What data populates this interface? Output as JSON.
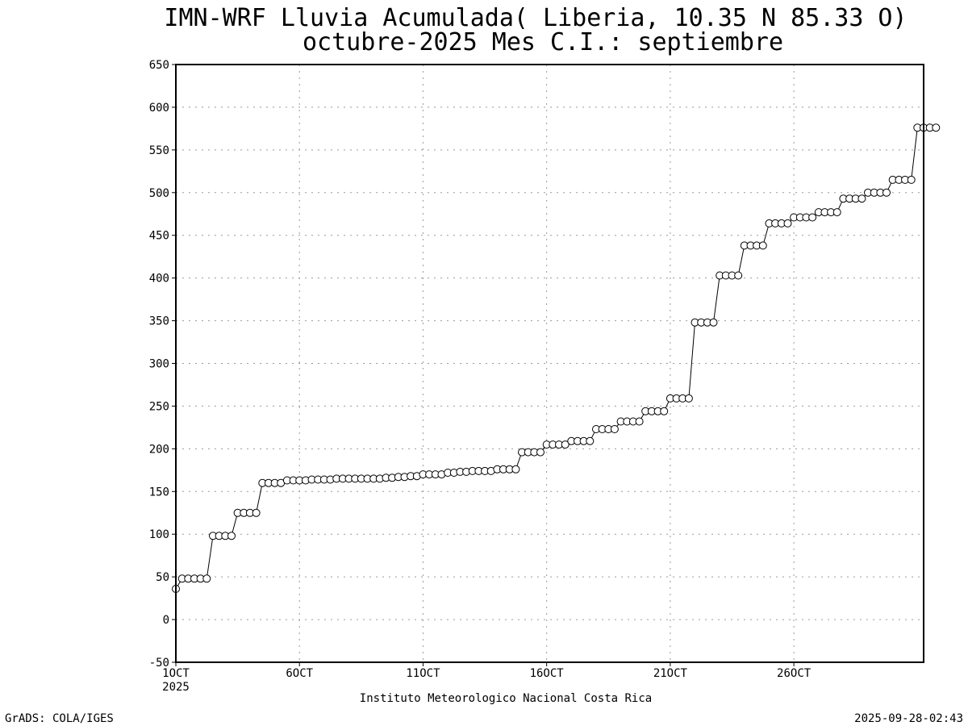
{
  "chart_data": {
    "type": "line",
    "title": "IMN-WRF  Lluvia Acumulada( Liberia, 10.35  N 85.33  O)",
    "subtitle": "octubre-2025 Mes C.I.: septiembre",
    "xlabel": "Instituto Meteorologico Nacional Costa Rica",
    "ylabel": "",
    "ylim": [
      -50,
      650
    ],
    "yticks": [
      -50,
      0,
      50,
      100,
      150,
      200,
      250,
      300,
      350,
      400,
      450,
      500,
      550,
      600,
      650
    ],
    "xlim": [
      1,
      31.25
    ],
    "xticks": [
      {
        "day": 1,
        "label": "1OCT",
        "sublabel": "2025"
      },
      {
        "day": 6,
        "label": "6OCT",
        "sublabel": ""
      },
      {
        "day": 11,
        "label": "11OCT",
        "sublabel": ""
      },
      {
        "day": 16,
        "label": "16OCT",
        "sublabel": ""
      },
      {
        "day": 21,
        "label": "21OCT",
        "sublabel": ""
      },
      {
        "day": 26,
        "label": "26OCT",
        "sublabel": ""
      }
    ],
    "grid": true,
    "marker": "open-circle",
    "series": [
      {
        "time_step_days": 0.25,
        "x_start_day": 1,
        "values": [
          36,
          48,
          48,
          48,
          48,
          48,
          98,
          98,
          98,
          98,
          125,
          125,
          125,
          125,
          160,
          160,
          160,
          160,
          163,
          163,
          163,
          163,
          164,
          164,
          164,
          164,
          165,
          165,
          165,
          165,
          165,
          165,
          165,
          165,
          166,
          166,
          167,
          167,
          168,
          168,
          170,
          170,
          170,
          170,
          172,
          172,
          173,
          173,
          174,
          174,
          174,
          174,
          176,
          176,
          176,
          176,
          196,
          196,
          196,
          196,
          205,
          205,
          205,
          205,
          209,
          209,
          209,
          209,
          223,
          223,
          223,
          223,
          232,
          232,
          232,
          232,
          244,
          244,
          244,
          244,
          259,
          259,
          259,
          259,
          348,
          348,
          348,
          348,
          403,
          403,
          403,
          403,
          438,
          438,
          438,
          438,
          464,
          464,
          464,
          464,
          471,
          471,
          471,
          471,
          477,
          477,
          477,
          477,
          493,
          493,
          493,
          493,
          500,
          500,
          500,
          500,
          515,
          515,
          515,
          515,
          576,
          576,
          576,
          576
        ]
      }
    ]
  },
  "footer": {
    "left": "GrADS: COLA/IGES",
    "right": "2025-09-28-02:43"
  }
}
